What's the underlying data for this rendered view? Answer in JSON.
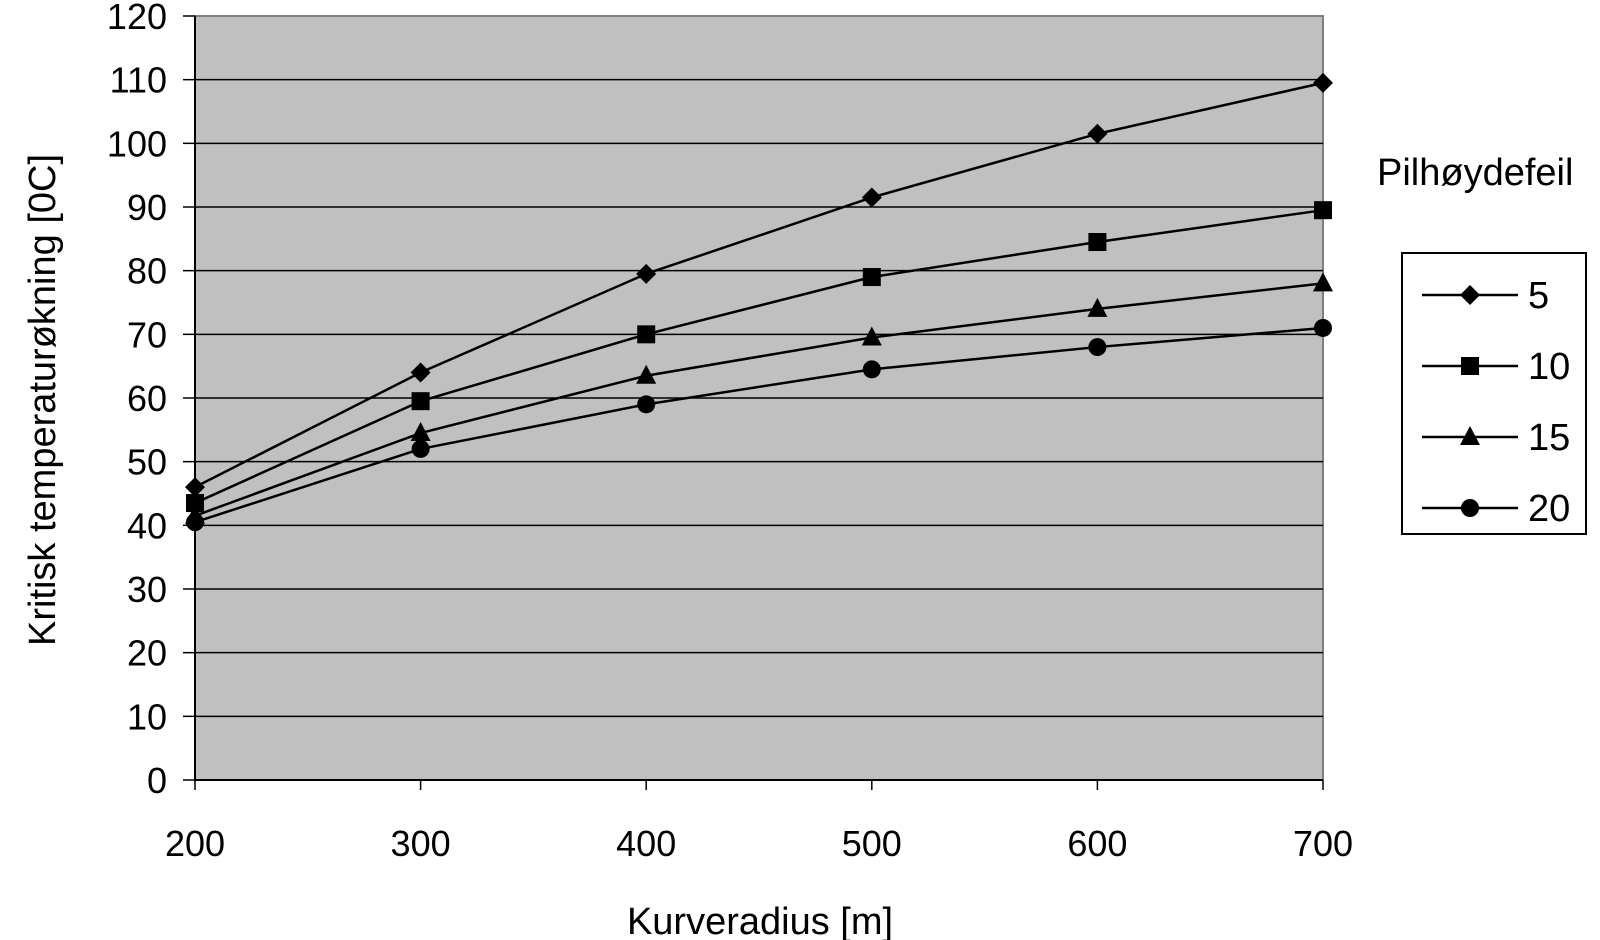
{
  "chart_data": {
    "type": "line",
    "title": "",
    "xlabel": "Kurveradius [m]",
    "ylabel": "Kritisk temperaturøkning [0C]",
    "x": [
      200,
      300,
      400,
      500,
      600,
      700
    ],
    "xlim": [
      200,
      700
    ],
    "ylim": [
      0,
      120
    ],
    "x_ticks": [
      "200",
      "300",
      "400",
      "500",
      "600",
      "700"
    ],
    "y_ticks": [
      "0",
      "10",
      "20",
      "30",
      "40",
      "50",
      "60",
      "70",
      "80",
      "90",
      "100",
      "110",
      "120"
    ],
    "grid": "horizontal",
    "legend_title": "Pilhøydefeil",
    "legend_position": "right",
    "plot_background": "#c0c0c0",
    "line_color": "#000000",
    "series": [
      {
        "name": "5",
        "marker": "diamond",
        "values": [
          46,
          64,
          79.5,
          91.5,
          101.5,
          109.5
        ]
      },
      {
        "name": "10",
        "marker": "square",
        "values": [
          43.5,
          59.5,
          70,
          79,
          84.5,
          89.5
        ]
      },
      {
        "name": "15",
        "marker": "triangle",
        "values": [
          41.5,
          54.5,
          63.5,
          69.5,
          74,
          78
        ]
      },
      {
        "name": "20",
        "marker": "circle",
        "values": [
          40.5,
          52,
          59,
          64.5,
          68,
          71
        ]
      }
    ]
  }
}
